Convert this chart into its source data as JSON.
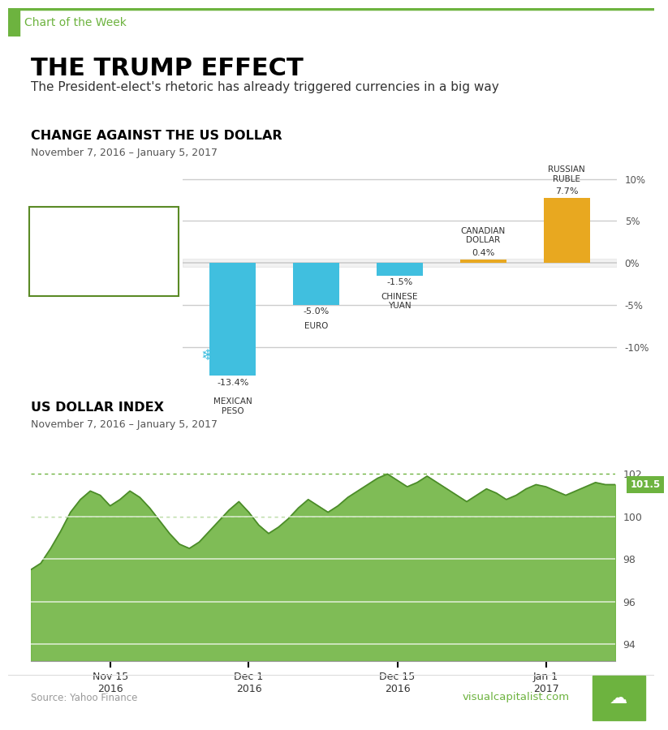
{
  "title": "THE TRUMP EFFECT",
  "subtitle": "The President-elect's rhetoric has already triggered currencies in a big way",
  "header_label": "Chart of the Week",
  "header_color": "#6db33f",
  "section1_title": "CHANGE AGAINST THE US DOLLAR",
  "section1_subtitle": "November 7, 2016 – January 5, 2017",
  "section2_title": "US DOLLAR INDEX",
  "section2_subtitle": "November 7, 2016 – January 5, 2017",
  "currencies": [
    "MEXICAN\nPESO",
    "EURO",
    "CHINESE\nYUAN",
    "CANADIAN\nDOLLAR",
    "RUSSIAN\nRUBLE"
  ],
  "values": [
    -13.4,
    -5.0,
    -1.5,
    0.4,
    7.7
  ],
  "value_labels": [
    "-13.4%",
    "-5.0%",
    "-1.5%",
    "0.4%",
    "7.7%"
  ],
  "bar_color_neg": "#40bfdf",
  "bar_color_pos": "#e8a820",
  "ylim_bar": [
    -15.5,
    11.5
  ],
  "yticks_bar": [
    -10,
    -5,
    0,
    5,
    10
  ],
  "dollar_yticks": [
    94,
    96,
    98,
    100,
    102
  ],
  "dollar_current": 101.5,
  "dollar_ylim": [
    93.2,
    103.5
  ],
  "dollar_xlim": [
    0,
    59
  ],
  "xtick_positions": [
    8,
    22,
    37,
    52
  ],
  "xtick_labels": [
    "Nov 15\n2016",
    "Dec 1\n2016",
    "Dec 15\n2016",
    "Jan 1\n2017"
  ],
  "source": "Source: Yahoo Finance",
  "website": "visualcapitalist.com",
  "green_color": "#6db33f",
  "fill_green": "#6db33f",
  "line_green": "#4a8a28"
}
